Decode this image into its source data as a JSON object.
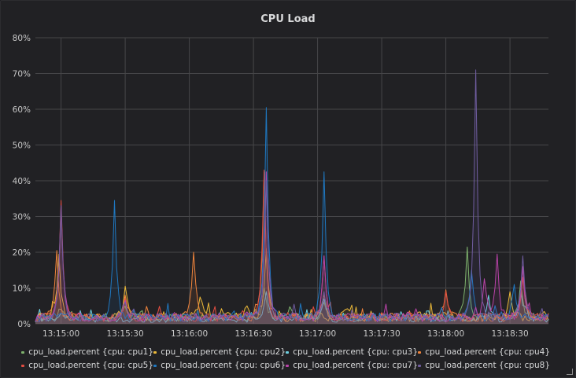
{
  "panel": {
    "title": "CPU Load"
  },
  "chart_data": {
    "type": "area",
    "title": "CPU Load",
    "xlabel": "",
    "ylabel": "",
    "ylim": [
      0,
      80
    ],
    "y_unit": "%",
    "y_ticks": [
      0,
      10,
      20,
      30,
      40,
      50,
      60,
      70,
      80
    ],
    "xlim": [
      "13:14:48",
      "13:18:48"
    ],
    "x_ticks": [
      "13:15:00",
      "13:15:30",
      "13:16:00",
      "13:16:30",
      "13:17:00",
      "13:17:30",
      "13:18:00",
      "13:18:30"
    ],
    "grid": true,
    "legend_position": "bottom",
    "sample_interval_s": 1,
    "series": [
      {
        "name": "cpu_load.percent {cpu: cpu1}",
        "color": "#7eb26d",
        "peaks": [
          [
            "13:15:00",
            4
          ],
          [
            "13:15:30",
            5
          ],
          [
            "13:16:35",
            10
          ],
          [
            "13:17:03",
            6
          ],
          [
            "13:18:10",
            21.5
          ],
          [
            "13:18:35",
            12
          ]
        ],
        "baseline": 1.5
      },
      {
        "name": "cpu_load.percent {cpu: cpu2}",
        "color": "#eab839",
        "peaks": [
          [
            "13:14:59",
            19.5
          ],
          [
            "13:15:30",
            10.5
          ],
          [
            "13:16:05",
            7.5
          ],
          [
            "13:16:27",
            5
          ],
          [
            "13:16:36",
            21
          ],
          [
            "13:17:13",
            4
          ],
          [
            "13:18:30",
            9
          ]
        ],
        "baseline": 1.5
      },
      {
        "name": "cpu_load.percent {cpu: cpu3}",
        "color": "#6ed0e0",
        "peaks": [
          [
            "13:15:00",
            3
          ],
          [
            "13:16:36",
            9
          ],
          [
            "13:17:03",
            7
          ],
          [
            "13:18:20",
            8
          ],
          [
            "13:18:35",
            10
          ]
        ],
        "baseline": 1
      },
      {
        "name": "cpu_load.percent {cpu: cpu4}",
        "color": "#ef843c",
        "peaks": [
          [
            "13:14:58",
            20.5
          ],
          [
            "13:15:30",
            8
          ],
          [
            "13:16:02",
            20
          ],
          [
            "13:16:35",
            42.5
          ],
          [
            "13:17:03",
            8
          ],
          [
            "13:18:00",
            9.5
          ],
          [
            "13:18:36",
            16
          ]
        ],
        "baseline": 1.5
      },
      {
        "name": "cpu_load.percent {cpu: cpu5}",
        "color": "#e24d42",
        "peaks": [
          [
            "13:15:00",
            34.5
          ],
          [
            "13:15:30",
            7
          ],
          [
            "13:16:35",
            43
          ],
          [
            "13:17:03",
            19
          ],
          [
            "13:18:00",
            9
          ],
          [
            "13:18:36",
            13
          ]
        ],
        "baseline": 1.5
      },
      {
        "name": "cpu_load.percent {cpu: cpu6}",
        "color": "#1f78c1",
        "peaks": [
          [
            "13:15:00",
            3
          ],
          [
            "13:15:25",
            34.5
          ],
          [
            "13:16:36",
            60.5
          ],
          [
            "13:17:03",
            42.5
          ],
          [
            "13:18:12",
            15
          ],
          [
            "13:18:32",
            11
          ]
        ],
        "baseline": 1.5
      },
      {
        "name": "cpu_load.percent {cpu: cpu7}",
        "color": "#ba43a9",
        "peaks": [
          [
            "13:15:00",
            33
          ],
          [
            "13:15:30",
            6.5
          ],
          [
            "13:16:36",
            42.5
          ],
          [
            "13:17:03",
            19
          ],
          [
            "13:18:18",
            12.5
          ],
          [
            "13:18:24",
            19.5
          ],
          [
            "13:18:36",
            16
          ]
        ],
        "baseline": 1.5
      },
      {
        "name": "cpu_load.percent {cpu: cpu8}",
        "color": "#705da0",
        "peaks": [
          [
            "13:15:00",
            33
          ],
          [
            "13:15:30",
            6
          ],
          [
            "13:16:36",
            40
          ],
          [
            "13:17:03",
            9
          ],
          [
            "13:18:14",
            71
          ],
          [
            "13:18:36",
            19
          ]
        ],
        "baseline": 1.5
      }
    ]
  }
}
